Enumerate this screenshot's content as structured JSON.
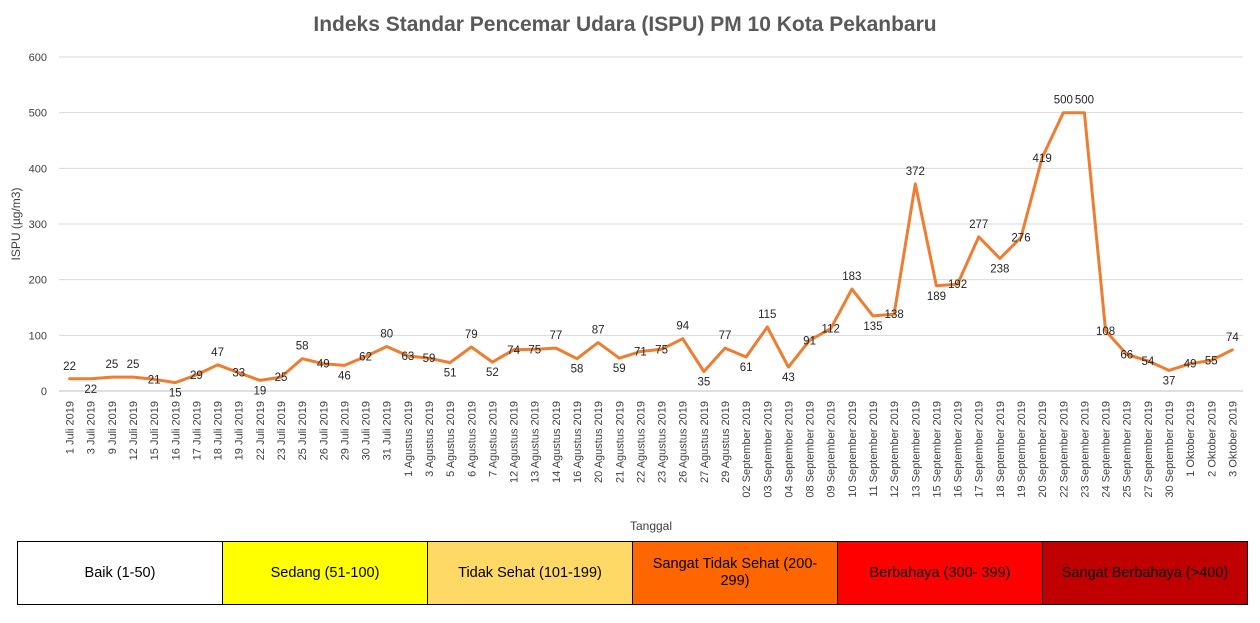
{
  "chart_data": {
    "type": "line",
    "title": "Indeks Standar Pencemar Udara (ISPU) PM 10 Kota Pekanbaru",
    "xlabel": "Tanggal",
    "ylabel": "ISPU (µg/m3)",
    "ylim": [
      0,
      600
    ],
    "yticks": [
      0,
      100,
      200,
      300,
      400,
      500,
      600
    ],
    "grid": true,
    "line_color": "#ED7D31",
    "categories": [
      "1 Juli 2019",
      "3 Juli 2019",
      "9 Juli 2019",
      "12 Juli 2019",
      "15 Juli 2019",
      "16 Juli 2019",
      "17 Juli 2019",
      "18 Juli 2019",
      "19 Juli 2019",
      "22 Juli 2019",
      "23 Juli 2019",
      "25 Juli 2019",
      "26 Juli 2019",
      "29 Juli 2019",
      "30 Juli 2019",
      "31 Juli 2019",
      "1 Agustus 2019",
      "3 Agustus 2019",
      "5 Agustus 2019",
      "6 Agustus 2019",
      "7 Agustus 2019",
      "12 Agustus 2019",
      "13 Agustus 2019",
      "14 Agustus 2019",
      "16 Agustus 2019",
      "20 Agustus 2019",
      "21 Agustus 2019",
      "22 Agustus 2019",
      "23 Agustus 2019",
      "26 Agustus 2019",
      "27 Agustus 2019",
      "29 Agustus 2019",
      "02 September 2019",
      "03 September 2019",
      "04 September 2019",
      "08 September 2019",
      "09 September 2019",
      "10 September 2019",
      "11 September 2019",
      "12 September 2019",
      "13 September 2019",
      "15 September 2019",
      "16 September 2019",
      "17 September 2019",
      "18 September 2019",
      "19 September 2019",
      "20 September 2019",
      "22 September 2019",
      "23 September 2019",
      "24 September 2019",
      "25 September 2019",
      "27 September 2019",
      "30 September 2019",
      "1 Oktober 2019",
      "2 Oktober 2019",
      "3 Oktober 2019"
    ],
    "values": [
      22,
      22,
      25,
      25,
      21,
      15,
      29,
      47,
      33,
      19,
      25,
      58,
      49,
      46,
      62,
      80,
      63,
      59,
      51,
      79,
      52,
      74,
      75,
      77,
      58,
      87,
      59,
      71,
      75,
      94,
      35,
      77,
      61,
      115,
      43,
      91,
      112,
      183,
      135,
      138,
      372,
      189,
      192,
      277,
      238,
      276,
      419,
      500,
      500,
      108,
      66,
      54,
      37,
      49,
      55,
      74
    ],
    "data_labels": true
  },
  "legend": [
    {
      "label": "Baik (1-50)",
      "color": "#FFFFFF"
    },
    {
      "label": "Sedang (51-100)",
      "color": "#FFFF00"
    },
    {
      "label": "Tidak Sehat (101-199)",
      "color": "#FFD966"
    },
    {
      "label": "Sangat Tidak Sehat (200-299)",
      "color": "#FF6600"
    },
    {
      "label": "Berbahaya (300- 399)",
      "color": "#FF0000"
    },
    {
      "label": "Sangat Berbahaya (>400)",
      "color": "#C00000"
    }
  ]
}
